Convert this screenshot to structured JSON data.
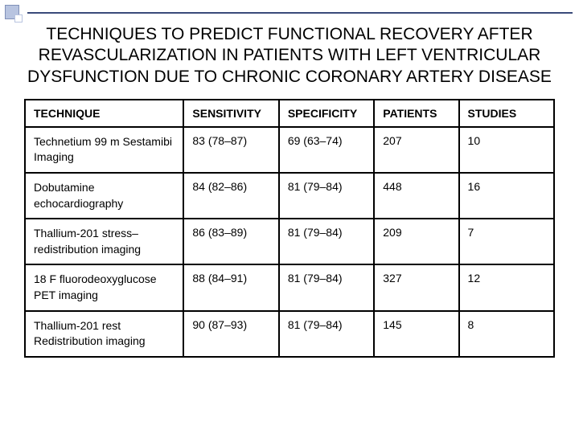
{
  "title": "TECHNIQUES TO PREDICT FUNCTIONAL RECOVERY AFTER REVASCULARIZATION IN PATIENTS WITH LEFT VENTRICULAR DYSFUNCTION DUE TO CHRONIC CORONARY ARTERY DISEASE",
  "table": {
    "columns": [
      "TECHNIQUE",
      "SENSITIVITY",
      "SPECIFICITY",
      "PATIENTS",
      "STUDIES"
    ],
    "rows": [
      {
        "technique": "Technetium 99 m Sestamibi Imaging",
        "sensitivity": "83 (78–87)",
        "specificity": "69 (63–74)",
        "patients": "207",
        "studies": "10"
      },
      {
        "technique": "Dobutamine echocardiography",
        "sensitivity": "84 (82–86)",
        "specificity": "81 (79–84)",
        "patients": "448",
        "studies": "16"
      },
      {
        "technique": "Thallium-201 stress–redistribution imaging",
        "sensitivity": "86 (83–89)",
        "specificity": "81 (79–84)",
        "patients": "209",
        "studies": "7"
      },
      {
        "technique": "18 F fluorodeoxyglucose PET imaging",
        "sensitivity": "88 (84–91)",
        "specificity": "81 (79–84)",
        "patients": "327",
        "studies": "12"
      },
      {
        "technique": "Thallium-201 rest Redistribution imaging",
        "sensitivity": "90 (87–93)",
        "specificity": "81 (79–84)",
        "patients": "145",
        "studies": "8"
      }
    ],
    "border_color": "#000000",
    "header_fontweight": "bold",
    "cell_fontsize": 14
  },
  "decoration": {
    "accent_color": "#b8c4e0",
    "line_color": "#3a4a7a"
  },
  "background_color": "#ffffff"
}
